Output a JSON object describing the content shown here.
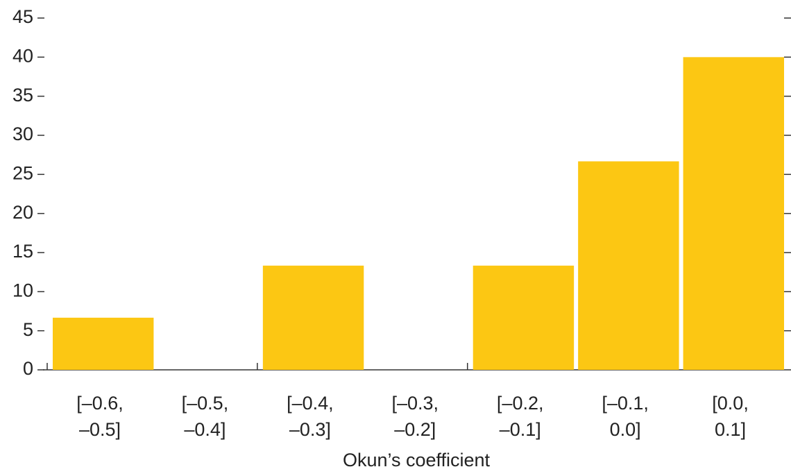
{
  "chart_data": {
    "type": "bar",
    "x_label": "Okun’s coefficient",
    "categories": [
      "[–0.6,\n–0.5]",
      "[–0.5,\n–0.4]",
      "[–0.4,\n–0.3]",
      "[–0.3,\n–0.2]",
      "[–0.2,\n–0.1]",
      "[–0.1,\n0.0]",
      "[0.0,\n0.1]"
    ],
    "values": [
      6.67,
      0,
      13.33,
      0,
      13.33,
      26.67,
      40
    ],
    "color": "#fcc713",
    "ylim": [
      0,
      45
    ],
    "yticks": [
      0,
      5,
      10,
      15,
      20,
      25,
      30,
      35,
      40,
      45
    ]
  }
}
